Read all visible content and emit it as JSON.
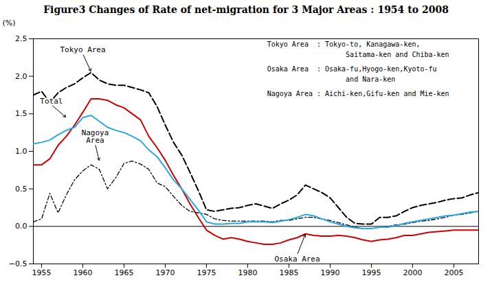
{
  "chart_data": {
    "type": "line",
    "title": "Figure3   Changes of Rate of net-migration for 3 Major Areas : 1954 to 2008",
    "ylabel": "(%)",
    "grid": false,
    "xlim": [
      1954,
      2008
    ],
    "ylim": [
      -0.5,
      2.5
    ],
    "xticks": [
      1955,
      1960,
      1965,
      1970,
      1975,
      1980,
      1985,
      1990,
      1995,
      2000,
      2005
    ],
    "yticks": [
      {
        "value": -0.5,
        "label": "−0.5"
      },
      {
        "value": 0,
        "label": "0.0"
      },
      0.5,
      {
        "value": 1,
        "label": "1.0"
      },
      1.5,
      {
        "value": 2,
        "label": "2.0"
      },
      2.5
    ],
    "x": [
      1954,
      1955,
      1956,
      1957,
      1958,
      1959,
      1960,
      1961,
      1962,
      1963,
      1964,
      1965,
      1966,
      1967,
      1968,
      1969,
      1970,
      1971,
      1972,
      1973,
      1974,
      1975,
      1976,
      1977,
      1978,
      1979,
      1980,
      1981,
      1982,
      1983,
      1984,
      1985,
      1986,
      1987,
      1988,
      1989,
      1990,
      1991,
      1992,
      1993,
      1994,
      1995,
      1996,
      1997,
      1998,
      1999,
      2000,
      2001,
      2002,
      2003,
      2004,
      2005,
      2006,
      2007,
      2008
    ],
    "series": [
      {
        "name": "Tokyo Area",
        "color": "#000000",
        "line_style": "dashed",
        "values": [
          1.75,
          1.8,
          1.65,
          1.78,
          1.85,
          1.9,
          1.98,
          2.05,
          1.95,
          1.9,
          1.88,
          1.88,
          1.85,
          1.82,
          1.78,
          1.6,
          1.35,
          1.12,
          0.95,
          0.72,
          0.48,
          0.22,
          0.2,
          0.22,
          0.24,
          0.25,
          0.28,
          0.3,
          0.27,
          0.24,
          0.3,
          0.35,
          0.42,
          0.55,
          0.5,
          0.45,
          0.38,
          0.25,
          0.12,
          0.04,
          0.03,
          0.03,
          0.12,
          0.12,
          0.14,
          0.2,
          0.25,
          0.28,
          0.3,
          0.32,
          0.35,
          0.37,
          0.38,
          0.42,
          0.45
        ]
      },
      {
        "name": "Osaka Area",
        "color": "#cc0000",
        "line_style": "solid",
        "values": [
          0.82,
          0.82,
          0.9,
          1.08,
          1.2,
          1.35,
          1.52,
          1.7,
          1.7,
          1.68,
          1.62,
          1.58,
          1.5,
          1.42,
          1.2,
          1.05,
          0.88,
          0.68,
          0.5,
          0.3,
          0.12,
          -0.05,
          -0.12,
          -0.17,
          -0.15,
          -0.17,
          -0.2,
          -0.22,
          -0.24,
          -0.24,
          -0.22,
          -0.18,
          -0.15,
          -0.1,
          -0.12,
          -0.13,
          -0.13,
          -0.12,
          -0.13,
          -0.15,
          -0.18,
          -0.2,
          -0.18,
          -0.17,
          -0.15,
          -0.12,
          -0.12,
          -0.1,
          -0.08,
          -0.07,
          -0.06,
          -0.05,
          -0.05,
          -0.05,
          -0.05
        ]
      },
      {
        "name": "Nagoya Area",
        "color": "#000000",
        "line_style": "dashdot",
        "values": [
          0.06,
          0.1,
          0.44,
          0.18,
          0.42,
          0.62,
          0.74,
          0.82,
          0.76,
          0.5,
          0.65,
          0.84,
          0.87,
          0.83,
          0.76,
          0.58,
          0.53,
          0.4,
          0.28,
          0.2,
          0.18,
          0.16,
          0.1,
          0.08,
          0.07,
          0.07,
          0.07,
          0.07,
          0.07,
          0.06,
          0.08,
          0.08,
          0.1,
          0.12,
          0.12,
          0.1,
          0.08,
          0.05,
          0.02,
          -0.01,
          -0.03,
          -0.03,
          -0.01,
          0.0,
          0.02,
          0.03,
          0.05,
          0.07,
          0.08,
          0.1,
          0.12,
          0.15,
          0.16,
          0.18,
          0.2
        ]
      },
      {
        "name": "Total",
        "color": "#29a8e0",
        "line_style": "solid",
        "values": [
          1.1,
          1.12,
          1.15,
          1.22,
          1.28,
          1.32,
          1.45,
          1.48,
          1.4,
          1.32,
          1.28,
          1.25,
          1.2,
          1.14,
          1.02,
          0.93,
          0.78,
          0.62,
          0.5,
          0.36,
          0.22,
          0.06,
          0.03,
          0.03,
          0.04,
          0.04,
          0.06,
          0.06,
          0.06,
          0.05,
          0.07,
          0.09,
          0.12,
          0.16,
          0.14,
          0.1,
          0.06,
          0.03,
          0.0,
          -0.02,
          -0.03,
          -0.03,
          -0.01,
          -0.01,
          0.01,
          0.04,
          0.06,
          0.08,
          0.1,
          0.12,
          0.14,
          0.15,
          0.17,
          0.19,
          0.2
        ]
      }
    ],
    "hlines": [
      0
    ],
    "annotations": [
      {
        "text": "Tokyo Area",
        "x": 1961,
        "y": 2.06,
        "text_x": 1960.0,
        "text_y": 2.3
      },
      {
        "text": "Total",
        "x": 1958,
        "y": 1.45,
        "text_x": 1956.2,
        "text_y": 1.62
      },
      {
        "text": "Nagoya\nArea",
        "x": 1962,
        "y": 0.87,
        "text_x": 1961.5,
        "text_y": 1.1
      },
      {
        "text": "Osaka Area",
        "x": 1987,
        "y": -0.1,
        "text_x": 1986.0,
        "text_y": -0.38
      }
    ],
    "text_block": [
      "Tokyo Area  : Tokyo-to, Kanagawa-ken,",
      "                   Saitama-ken and Chiba-ken",
      "Osaka Area  : Osaka-fu,Hyogo-ken,Kyoto-fu",
      "                   and Nara-ken",
      "Nagoya Area : Aichi-ken,Gifu-ken and Mie-ken"
    ]
  }
}
